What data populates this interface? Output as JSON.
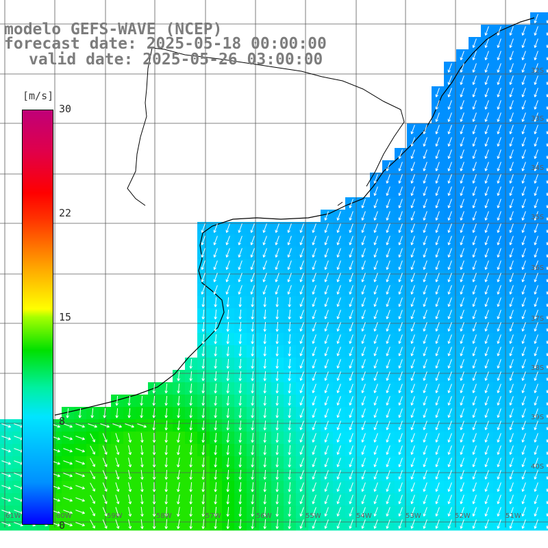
{
  "title": {
    "line1": "modelo GEFS-WAVE (NCEP)",
    "line2": "forecast date: 2025-05-18 00:00:00",
    "line3": "valid date: 2025-05-26 03:00:00"
  },
  "colorbar": {
    "unit": "[m/s]",
    "ticks": [
      {
        "label": "30",
        "value": 30
      },
      {
        "label": "22",
        "value": 22
      },
      {
        "label": "15",
        "value": 15
      },
      {
        "label": "8",
        "value": 8
      },
      {
        "label": "0",
        "value": 0
      }
    ],
    "min": 0,
    "max": 30
  },
  "grid": {
    "lat_labels": [
      "32S",
      "33S",
      "34S",
      "35S",
      "36S",
      "37S",
      "38S",
      "39S",
      "40S"
    ],
    "lon_labels": [
      "61W",
      "60W",
      "59W",
      "58W",
      "57W",
      "56W",
      "55W",
      "54W",
      "53W",
      "52W",
      "51W"
    ]
  },
  "colors": {
    "land": "#ffffff",
    "coast": "#000000",
    "grid": "#5a5a5a",
    "arrow": "#ffffff"
  }
}
